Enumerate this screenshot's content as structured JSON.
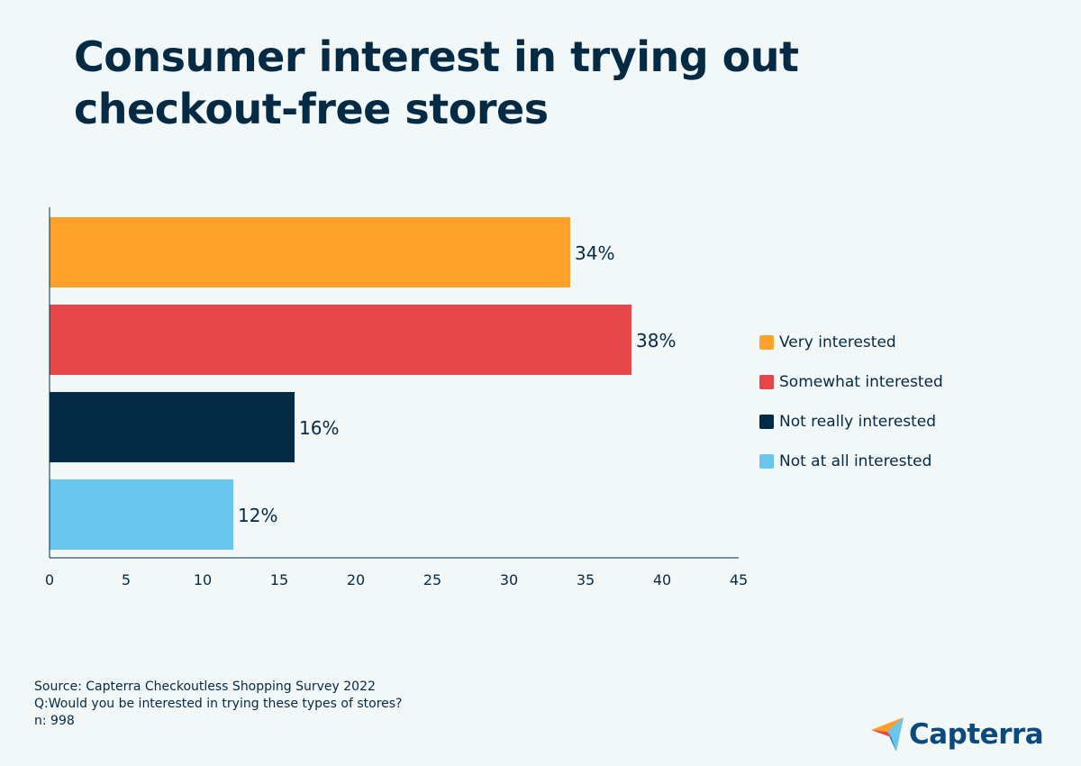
{
  "title_lines": [
    "Consumer interest in trying out",
    "checkout-free stores"
  ],
  "source_lines": [
    "Source: Capterra Checkoutless Shopping Survey 2022",
    "Q:Would you be interested in trying these types of stores?",
    "n: 998"
  ],
  "logo": {
    "text": "Capterra",
    "icon": "capterra-arrow-icon"
  },
  "colors": {
    "background": "#f2f7f8",
    "text": "#042a44",
    "axis": "#042a44"
  },
  "chart_data": {
    "type": "bar",
    "orientation": "horizontal",
    "title": "Consumer interest in trying out checkout-free stores",
    "series": [
      {
        "name": "Very interested",
        "value": 34,
        "label": "34%",
        "color": "#ffa12b"
      },
      {
        "name": "Somewhat interested",
        "value": 38,
        "label": "38%",
        "color": "#e64849"
      },
      {
        "name": "Not really interested",
        "value": 16,
        "label": "16%",
        "color": "#032b46"
      },
      {
        "name": "Not at all interested",
        "value": 12,
        "label": "12%",
        "color": "#6bc6ef"
      }
    ],
    "xlim": [
      0,
      45
    ],
    "xticks": [
      0,
      5,
      10,
      15,
      20,
      25,
      30,
      35,
      40,
      45
    ],
    "xlabel": "",
    "ylabel": "",
    "grid": false,
    "legend": "right"
  }
}
